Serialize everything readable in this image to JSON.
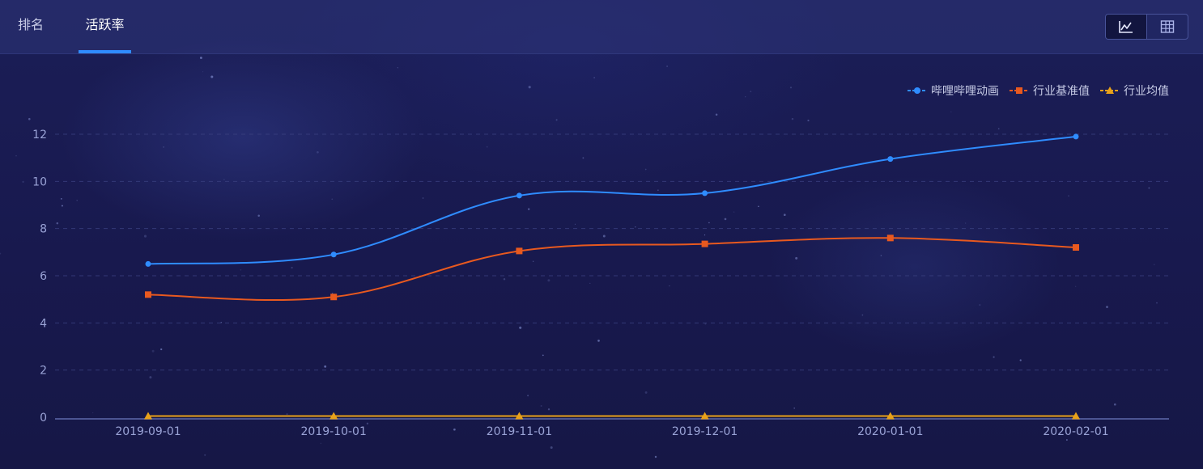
{
  "tabs": [
    {
      "label": "排名"
    },
    {
      "label": "活跃率"
    }
  ],
  "active_tab": "活跃率",
  "view_toggle": {
    "chart_icon": "line-chart-icon",
    "table_icon": "table-icon",
    "active": "chart"
  },
  "colors": {
    "background": "#18194e",
    "grid": "#3a4080",
    "axis_text": "#9aa3d6",
    "accent": "#2f8cff"
  },
  "chart_data": {
    "type": "line",
    "title": "",
    "xlabel": "",
    "ylabel": "",
    "categories": [
      "2019-09-01",
      "2019-10-01",
      "2019-11-01",
      "2019-12-01",
      "2020-01-01",
      "2020-02-01"
    ],
    "ylim": [
      0,
      12
    ],
    "yticks": [
      0,
      2,
      4,
      6,
      8,
      10,
      12
    ],
    "grid": true,
    "smooth": true,
    "legend_position": "top-right",
    "series": [
      {
        "name": "哔哩哔哩动画",
        "marker": "circle",
        "color": "#2f8cff",
        "values": [
          6.5,
          6.9,
          9.4,
          9.5,
          10.95,
          11.9
        ]
      },
      {
        "name": "行业基准值",
        "marker": "square",
        "color": "#e8591f",
        "values": [
          5.2,
          5.1,
          7.05,
          7.35,
          7.6,
          7.2
        ]
      },
      {
        "name": "行业均值",
        "marker": "triangle",
        "color": "#e8a11a",
        "values": [
          0.05,
          0.05,
          0.05,
          0.05,
          0.05,
          0.05
        ]
      }
    ]
  }
}
